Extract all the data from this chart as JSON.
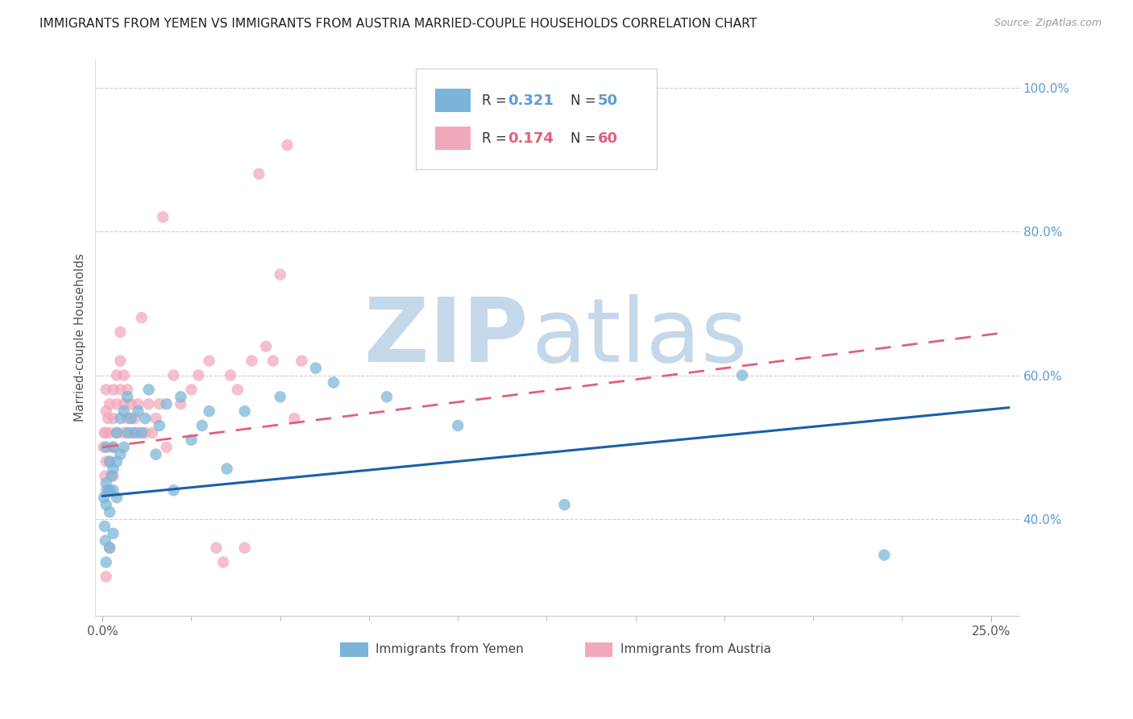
{
  "title": "IMMIGRANTS FROM YEMEN VS IMMIGRANTS FROM AUSTRIA MARRIED-COUPLE HOUSEHOLDS CORRELATION CHART",
  "source": "Source: ZipAtlas.com",
  "ylabel": "Married-couple Households",
  "ytick_labels": [
    "40.0%",
    "60.0%",
    "80.0%",
    "100.0%"
  ],
  "ytick_values": [
    0.4,
    0.6,
    0.8,
    1.0
  ],
  "ylim": [
    0.265,
    1.04
  ],
  "xlim": [
    -0.002,
    0.258
  ],
  "xtick_labels": [
    "0.0%",
    "25.0%"
  ],
  "xtick_positions": [
    0.0,
    0.25
  ],
  "xtick_minor_positions": [
    0.025,
    0.05,
    0.075,
    0.1,
    0.125,
    0.15,
    0.175,
    0.2,
    0.225
  ],
  "legend_r_yemen": "0.321",
  "legend_n_yemen": "50",
  "legend_r_austria": "0.174",
  "legend_n_austria": "60",
  "legend_label_yemen": "Immigrants from Yemen",
  "legend_label_austria": "Immigrants from Austria",
  "color_yemen": "#7ab4d8",
  "color_austria": "#f2a8bb",
  "line_color_yemen": "#1a5fa8",
  "line_color_austria": "#e0607a",
  "watermark_color": "#c5d8ea",
  "title_color": "#222222",
  "source_color": "#999999",
  "ytick_color": "#5b9bd5",
  "legend_r_color_yemen": "#5b9bd5",
  "legend_r_color_austria": "#e0607a",
  "yemen_x": [
    0.0004,
    0.0006,
    0.0008,
    0.001,
    0.001,
    0.001,
    0.001,
    0.0015,
    0.002,
    0.002,
    0.002,
    0.002,
    0.0025,
    0.003,
    0.003,
    0.003,
    0.003,
    0.004,
    0.004,
    0.004,
    0.005,
    0.005,
    0.006,
    0.006,
    0.007,
    0.007,
    0.008,
    0.009,
    0.01,
    0.011,
    0.012,
    0.013,
    0.015,
    0.016,
    0.018,
    0.02,
    0.022,
    0.025,
    0.028,
    0.03,
    0.035,
    0.04,
    0.05,
    0.06,
    0.065,
    0.08,
    0.1,
    0.13,
    0.18,
    0.22
  ],
  "yemen_y": [
    0.43,
    0.39,
    0.37,
    0.5,
    0.45,
    0.42,
    0.34,
    0.44,
    0.48,
    0.44,
    0.41,
    0.36,
    0.46,
    0.5,
    0.47,
    0.44,
    0.38,
    0.52,
    0.48,
    0.43,
    0.54,
    0.49,
    0.55,
    0.5,
    0.57,
    0.52,
    0.54,
    0.52,
    0.55,
    0.52,
    0.54,
    0.58,
    0.49,
    0.53,
    0.56,
    0.44,
    0.57,
    0.51,
    0.53,
    0.55,
    0.47,
    0.55,
    0.57,
    0.61,
    0.59,
    0.57,
    0.53,
    0.42,
    0.6,
    0.35
  ],
  "austria_x": [
    0.0003,
    0.0005,
    0.0007,
    0.001,
    0.001,
    0.001,
    0.001,
    0.001,
    0.001,
    0.0015,
    0.002,
    0.002,
    0.002,
    0.002,
    0.003,
    0.003,
    0.003,
    0.003,
    0.004,
    0.004,
    0.004,
    0.005,
    0.005,
    0.005,
    0.006,
    0.006,
    0.006,
    0.007,
    0.007,
    0.008,
    0.008,
    0.009,
    0.01,
    0.01,
    0.011,
    0.012,
    0.013,
    0.014,
    0.015,
    0.016,
    0.017,
    0.018,
    0.02,
    0.022,
    0.025,
    0.027,
    0.03,
    0.032,
    0.034,
    0.036,
    0.038,
    0.04,
    0.042,
    0.044,
    0.046,
    0.048,
    0.05,
    0.052,
    0.054,
    0.056
  ],
  "austria_y": [
    0.5,
    0.52,
    0.46,
    0.58,
    0.55,
    0.52,
    0.48,
    0.44,
    0.32,
    0.54,
    0.56,
    0.52,
    0.48,
    0.36,
    0.58,
    0.54,
    0.5,
    0.46,
    0.6,
    0.56,
    0.52,
    0.62,
    0.58,
    0.66,
    0.6,
    0.56,
    0.52,
    0.58,
    0.54,
    0.52,
    0.56,
    0.54,
    0.52,
    0.56,
    0.68,
    0.52,
    0.56,
    0.52,
    0.54,
    0.56,
    0.82,
    0.5,
    0.6,
    0.56,
    0.58,
    0.6,
    0.62,
    0.36,
    0.34,
    0.6,
    0.58,
    0.36,
    0.62,
    0.88,
    0.64,
    0.62,
    0.74,
    0.92,
    0.54,
    0.62
  ],
  "trend_yemen_x0": 0.0,
  "trend_yemen_y0": 0.432,
  "trend_yemen_x1": 0.255,
  "trend_yemen_y1": 0.555,
  "trend_austria_x0": 0.0,
  "trend_austria_y0": 0.5,
  "trend_austria_x1": 0.255,
  "trend_austria_y1": 0.66
}
